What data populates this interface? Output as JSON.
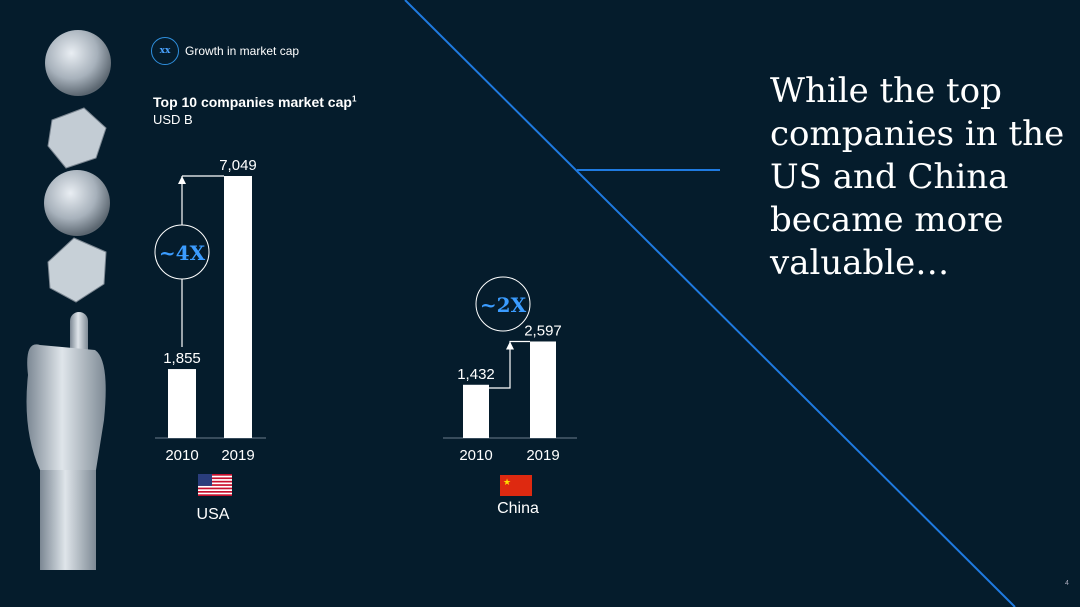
{
  "legend": {
    "symbol": "xx",
    "label": "Growth in market cap"
  },
  "chart_title": "Top 10 companies market cap",
  "chart_title_footnote": "1",
  "unit": "USD B",
  "headline": "While the top companies in the US and China became more valuable…",
  "page_number": "4",
  "colors": {
    "background": "#051c2c",
    "accent": "#2f8fdd",
    "bar": "#ffffff"
  },
  "chart_data": [
    {
      "type": "bar",
      "name": "USA",
      "categories": [
        "2010",
        "2019"
      ],
      "values": [
        1855,
        7049
      ],
      "value_labels": [
        "1,855",
        "7,049"
      ],
      "growth_label": "~4X",
      "flag": "us-flag-icon"
    },
    {
      "type": "bar",
      "name": "China",
      "categories": [
        "2010",
        "2019"
      ],
      "values": [
        1432,
        2597
      ],
      "value_labels": [
        "1,432",
        "2,597"
      ],
      "growth_label": "~2X",
      "flag": "china-flag-icon"
    }
  ]
}
